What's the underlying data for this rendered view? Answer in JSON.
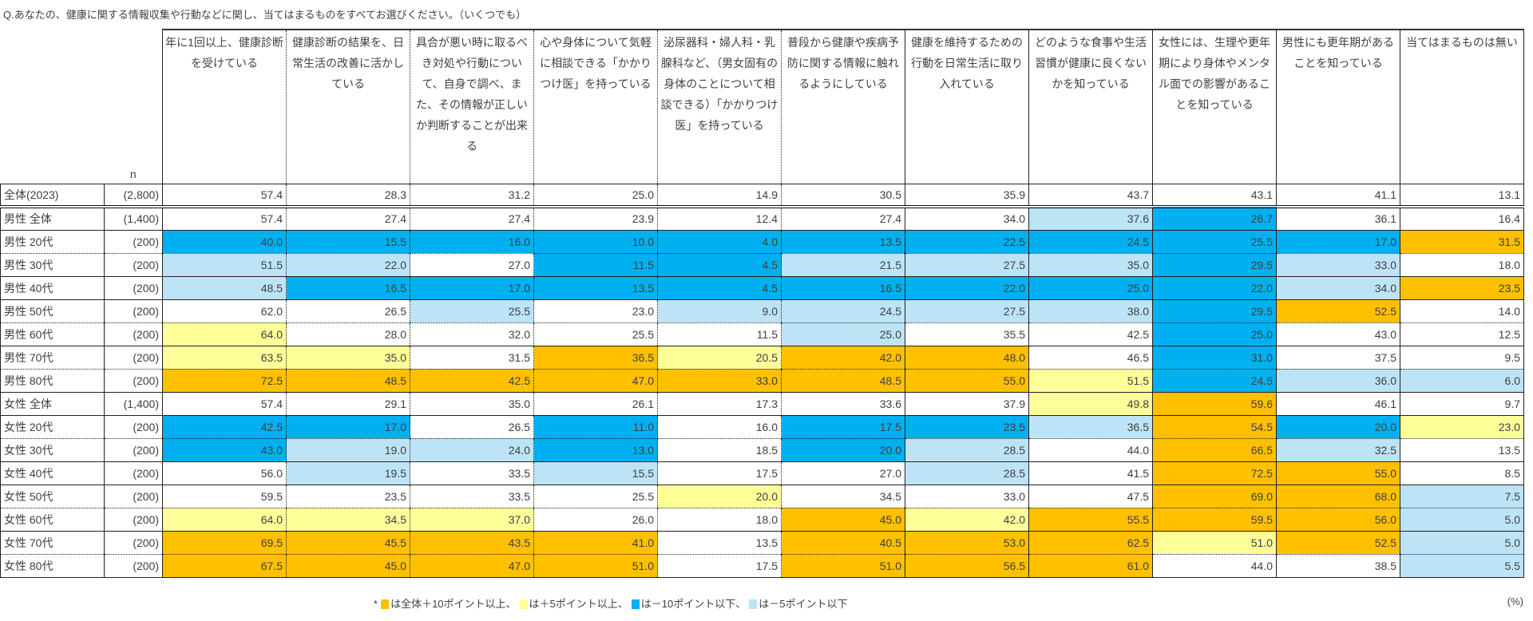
{
  "question": "Q.あなたの、健康に関する情報収集や行動などに関し、当てはまるものをすべてお選びください。（いくつでも）",
  "n_header": "n",
  "colors": {
    "O": "#FFC000",
    "Y": "#FFFF99",
    "B": "#00B0F0",
    "L": "#BDE3F7"
  },
  "columns": [
    "年に1回以上、健康診断を受けている",
    "健康診断の結果を、日常生活の改善に活かしている",
    "具合が悪い時に取るべき対処や行動について、自身で調べ、また、その情報が正しいか判断することが出来る",
    "心や身体について気軽に相談できる「かかりつけ医」を持っている",
    "泌尿器科・婦人科・乳腺科など、（男女固有の身体のことについて相談できる）「かかりつけ医」を持っている",
    "普段から健康や疾病予防に関する情報に触れるようにしている",
    "健康を維持するための行動を日常生活に取り入れている",
    "どのような食事や生活習慣が健康に良くないかを知っている",
    "女性には、生理や更年期により身体やメンタル面での影響があることを知っている",
    "男性にも更年期があることを知っている",
    "当てはまるものは無い"
  ],
  "rows": [
    {
      "label": "全体(2023)",
      "n": "(2,800)",
      "values": [
        "57.4",
        "28.3",
        "31.2",
        "25.0",
        "14.9",
        "30.5",
        "35.9",
        "43.7",
        "43.1",
        "41.1",
        "13.1"
      ],
      "highlight": [
        "",
        "",
        "",
        "",
        "",
        "",
        "",
        "",
        "",
        "",
        ""
      ]
    },
    {
      "label": "男性 全体",
      "n": "(1,400)",
      "values": [
        "57.4",
        "27.4",
        "27.4",
        "23.9",
        "12.4",
        "27.4",
        "34.0",
        "37.6",
        "26.7",
        "36.1",
        "16.4"
      ],
      "highlight": [
        "",
        "",
        "",
        "",
        "",
        "",
        "",
        "L",
        "B",
        "",
        ""
      ]
    },
    {
      "label": "男性 20代",
      "n": "(200)",
      "values": [
        "40.0",
        "15.5",
        "16.0",
        "10.0",
        "4.0",
        "13.5",
        "22.5",
        "24.5",
        "25.5",
        "17.0",
        "31.5"
      ],
      "highlight": [
        "B",
        "B",
        "B",
        "B",
        "B",
        "B",
        "B",
        "B",
        "B",
        "B",
        "O"
      ]
    },
    {
      "label": "男性 30代",
      "n": "(200)",
      "values": [
        "51.5",
        "22.0",
        "27.0",
        "11.5",
        "4.5",
        "21.5",
        "27.5",
        "35.0",
        "29.5",
        "33.0",
        "18.0"
      ],
      "highlight": [
        "L",
        "L",
        "",
        "B",
        "B",
        "L",
        "L",
        "L",
        "B",
        "L",
        ""
      ]
    },
    {
      "label": "男性 40代",
      "n": "(200)",
      "values": [
        "48.5",
        "16.5",
        "17.0",
        "13.5",
        "4.5",
        "16.5",
        "22.0",
        "25.0",
        "22.0",
        "34.0",
        "23.5"
      ],
      "highlight": [
        "L",
        "B",
        "B",
        "B",
        "B",
        "B",
        "B",
        "B",
        "B",
        "L",
        "O"
      ]
    },
    {
      "label": "男性 50代",
      "n": "(200)",
      "values": [
        "62.0",
        "26.5",
        "25.5",
        "23.0",
        "9.0",
        "24.5",
        "27.5",
        "38.0",
        "29.5",
        "52.5",
        "14.0"
      ],
      "highlight": [
        "",
        "",
        "L",
        "",
        "L",
        "L",
        "L",
        "L",
        "B",
        "O",
        ""
      ]
    },
    {
      "label": "男性 60代",
      "n": "(200)",
      "values": [
        "64.0",
        "28.0",
        "32.0",
        "25.5",
        "11.5",
        "25.0",
        "35.5",
        "42.5",
        "25.0",
        "43.0",
        "12.5"
      ],
      "highlight": [
        "Y",
        "",
        "",
        "",
        "",
        "L",
        "",
        "",
        "B",
        "",
        ""
      ]
    },
    {
      "label": "男性 70代",
      "n": "(200)",
      "values": [
        "63.5",
        "35.0",
        "31.5",
        "36.5",
        "20.5",
        "42.0",
        "48.0",
        "46.5",
        "31.0",
        "37.5",
        "9.5"
      ],
      "highlight": [
        "Y",
        "Y",
        "",
        "O",
        "Y",
        "O",
        "O",
        "",
        "B",
        "",
        ""
      ]
    },
    {
      "label": "男性 80代",
      "n": "(200)",
      "values": [
        "72.5",
        "48.5",
        "42.5",
        "47.0",
        "33.0",
        "48.5",
        "55.0",
        "51.5",
        "24.5",
        "36.0",
        "6.0"
      ],
      "highlight": [
        "O",
        "O",
        "O",
        "O",
        "O",
        "O",
        "O",
        "Y",
        "B",
        "L",
        "L"
      ]
    },
    {
      "label": "女性 全体",
      "n": "(1,400)",
      "values": [
        "57.4",
        "29.1",
        "35.0",
        "26.1",
        "17.3",
        "33.6",
        "37.9",
        "49.8",
        "59.6",
        "46.1",
        "9.7"
      ],
      "highlight": [
        "",
        "",
        "",
        "",
        "",
        "",
        "",
        "Y",
        "O",
        "",
        ""
      ]
    },
    {
      "label": "女性 20代",
      "n": "(200)",
      "values": [
        "42.5",
        "17.0",
        "26.5",
        "11.0",
        "16.0",
        "17.5",
        "23.5",
        "36.5",
        "54.5",
        "20.0",
        "23.0"
      ],
      "highlight": [
        "B",
        "B",
        "",
        "B",
        "",
        "B",
        "B",
        "L",
        "O",
        "B",
        "Y"
      ]
    },
    {
      "label": "女性 30代",
      "n": "(200)",
      "values": [
        "43.0",
        "19.0",
        "24.0",
        "13.0",
        "18.5",
        "20.0",
        "28.5",
        "44.0",
        "66.5",
        "32.5",
        "13.5"
      ],
      "highlight": [
        "B",
        "L",
        "L",
        "B",
        "",
        "B",
        "L",
        "",
        "O",
        "L",
        ""
      ]
    },
    {
      "label": "女性 40代",
      "n": "(200)",
      "values": [
        "56.0",
        "19.5",
        "33.5",
        "15.5",
        "17.5",
        "27.0",
        "28.5",
        "41.5",
        "72.5",
        "55.0",
        "8.5"
      ],
      "highlight": [
        "",
        "L",
        "",
        "L",
        "",
        "",
        "L",
        "",
        "O",
        "O",
        ""
      ]
    },
    {
      "label": "女性 50代",
      "n": "(200)",
      "values": [
        "59.5",
        "23.5",
        "33.5",
        "25.5",
        "20.0",
        "34.5",
        "33.0",
        "47.5",
        "69.0",
        "68.0",
        "7.5"
      ],
      "highlight": [
        "",
        "",
        "",
        "",
        "Y",
        "",
        "",
        "",
        "O",
        "O",
        "L"
      ]
    },
    {
      "label": "女性 60代",
      "n": "(200)",
      "values": [
        "64.0",
        "34.5",
        "37.0",
        "26.0",
        "18.0",
        "45.0",
        "42.0",
        "55.5",
        "59.5",
        "56.0",
        "5.0"
      ],
      "highlight": [
        "Y",
        "Y",
        "Y",
        "",
        "",
        "O",
        "Y",
        "O",
        "O",
        "O",
        "L"
      ]
    },
    {
      "label": "女性 70代",
      "n": "(200)",
      "values": [
        "69.5",
        "45.5",
        "43.5",
        "41.0",
        "13.5",
        "40.5",
        "53.0",
        "62.5",
        "51.0",
        "52.5",
        "5.0"
      ],
      "highlight": [
        "O",
        "O",
        "O",
        "O",
        "",
        "O",
        "O",
        "O",
        "Y",
        "O",
        "L"
      ]
    },
    {
      "label": "女性 80代",
      "n": "(200)",
      "values": [
        "67.5",
        "45.0",
        "47.0",
        "51.0",
        "17.5",
        "51.0",
        "56.5",
        "61.0",
        "44.0",
        "38.5",
        "5.5"
      ],
      "highlight": [
        "O",
        "O",
        "O",
        "O",
        "",
        "O",
        "O",
        "O",
        "",
        "",
        "L"
      ]
    }
  ],
  "legend": {
    "prefix": "*",
    "items": [
      {
        "color": "O",
        "text": "は全体＋10ポイント以上、"
      },
      {
        "color": "Y",
        "text": "は＋5ポイント以上、"
      },
      {
        "color": "B",
        "text": "は－10ポイント以下、"
      },
      {
        "color": "L",
        "text": "は－5ポイント以下"
      }
    ]
  },
  "unit": "(%)"
}
